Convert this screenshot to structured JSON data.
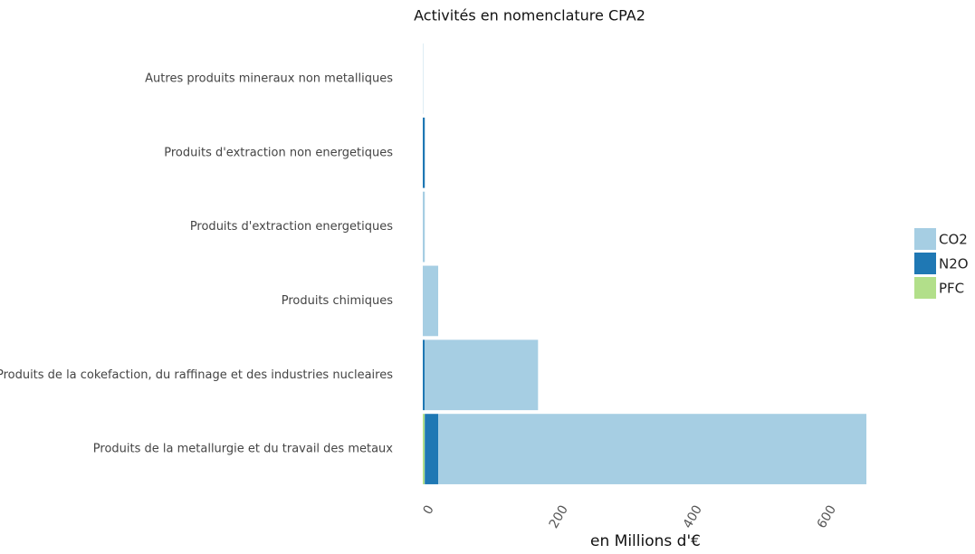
{
  "chart_data": {
    "type": "stacked_barh",
    "title": "Activités en nomenclature CPA2",
    "x_label": "en Millions d'€",
    "categories": [
      "Autres produits mineraux non metalliques",
      "Produits d'extraction non energetiques",
      "Produits d'extraction energetiques",
      "Produits chimiques",
      "Produits de la cokefaction, du raffinage et des industries nucleaires",
      "Produits de la metallurgie et du travail des metaux"
    ],
    "series": [
      {
        "name": "PFC",
        "color": "#b2df8a",
        "values": [
          0,
          0,
          0,
          0,
          0,
          3
        ]
      },
      {
        "name": "N2O",
        "color": "#1f78b4",
        "values": [
          0,
          3,
          0,
          0,
          3,
          20
        ]
      },
      {
        "name": "CO2",
        "color": "#a6cee3",
        "values": [
          0.5,
          0,
          3,
          23,
          169,
          639
        ]
      }
    ],
    "legend_order": [
      "CO2",
      "N2O",
      "PFC"
    ],
    "xlim": [
      0,
      666
    ],
    "xticks": [
      0,
      200,
      400,
      600
    ],
    "grid": false,
    "legend": "right"
  }
}
